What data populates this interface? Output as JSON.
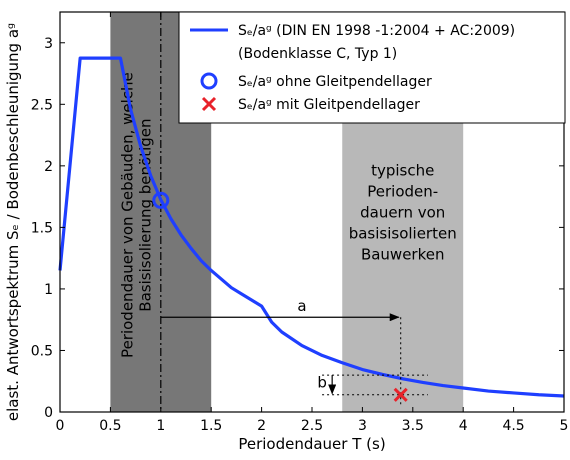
{
  "chart_data": {
    "type": "line",
    "xlabel": "Periodendauer T (s)",
    "ylabel": "elast. Antwortspektrum Sₑ / Bodenbeschleunigung aᵍ",
    "xlim": [
      0,
      5
    ],
    "ylim": [
      0,
      3.25
    ],
    "xticks": [
      "0",
      "0.5",
      "1",
      "1.5",
      "2",
      "2.5",
      "3",
      "3.5",
      "4",
      "4.5",
      "5"
    ],
    "yticks": [
      "0",
      "0.5",
      "1",
      "1.5",
      "2",
      "2.5",
      "3"
    ],
    "series": [
      {
        "name": "Sₑ/aᵍ (DIN EN 1998 -1:2004 + AC:2009) (Bodenklasse C, Typ 1)",
        "color": "#1f3fff",
        "x": [
          0,
          0.2,
          0.6,
          0.7,
          0.8,
          0.9,
          1.0,
          1.1,
          1.2,
          1.3,
          1.4,
          1.5,
          1.6,
          1.7,
          1.8,
          1.9,
          2.0,
          2.1,
          2.2,
          2.4,
          2.6,
          2.8,
          3.0,
          3.2,
          3.4,
          3.6,
          3.8,
          4.0,
          4.25,
          4.5,
          4.75,
          5.0
        ],
        "y": [
          1.15,
          2.875,
          2.875,
          2.46,
          2.16,
          1.92,
          1.725,
          1.57,
          1.44,
          1.33,
          1.23,
          1.15,
          1.08,
          1.01,
          0.96,
          0.91,
          0.86,
          0.73,
          0.65,
          0.54,
          0.46,
          0.4,
          0.345,
          0.305,
          0.27,
          0.24,
          0.215,
          0.195,
          0.17,
          0.155,
          0.14,
          0.13
        ]
      }
    ],
    "points": [
      {
        "name": "Sₑ/aᵍ ohne Gleitpendellager",
        "x": 1.0,
        "y": 1.72,
        "marker": "circle",
        "color": "#1f3fff"
      },
      {
        "name": "Sₑ/aᵍ mit Gleitpendellager",
        "x": 3.38,
        "y": 0.14,
        "marker": "x",
        "color": "#e8222a"
      }
    ],
    "bands": [
      {
        "x": [
          0.5,
          1.5
        ],
        "color": "#777777",
        "label": "Periodendauer von Gebäuden, welche Basisisolierung benötigen"
      },
      {
        "x": [
          2.8,
          4.0
        ],
        "color": "#b8b8b8",
        "label": "typische Perioden- dauern von basisisolierten Bauwerken"
      }
    ],
    "vline_x": 1.0,
    "annotations": [
      {
        "text": "a",
        "from": [
          1.0,
          0.77
        ],
        "to": [
          3.38,
          0.77
        ]
      },
      {
        "text": "b",
        "from": [
          2.7,
          0.3
        ],
        "to": [
          2.7,
          0.15
        ]
      }
    ],
    "legend_position": "top-right",
    "grid": false
  },
  "legend": {
    "line_main": "Sₑ/aᵍ (DIN EN 1998 -1:2004 + AC:2009)",
    "line_sub": "(Bodenklasse C, Typ 1)",
    "circle_label": "Sₑ/aᵍ ohne Gleitpendellager",
    "x_label": "Sₑ/aᵍ mit Gleitpendellager"
  },
  "bands_text": {
    "dark": [
      "Periodendauer von Gebäuden, welche",
      "Basisisolierung benötigen"
    ],
    "light": [
      "typische",
      "Perioden-",
      "dauern von",
      "basisisolierten",
      "Bauwerken"
    ]
  },
  "anno_labels": {
    "a": "a",
    "b": "b"
  }
}
